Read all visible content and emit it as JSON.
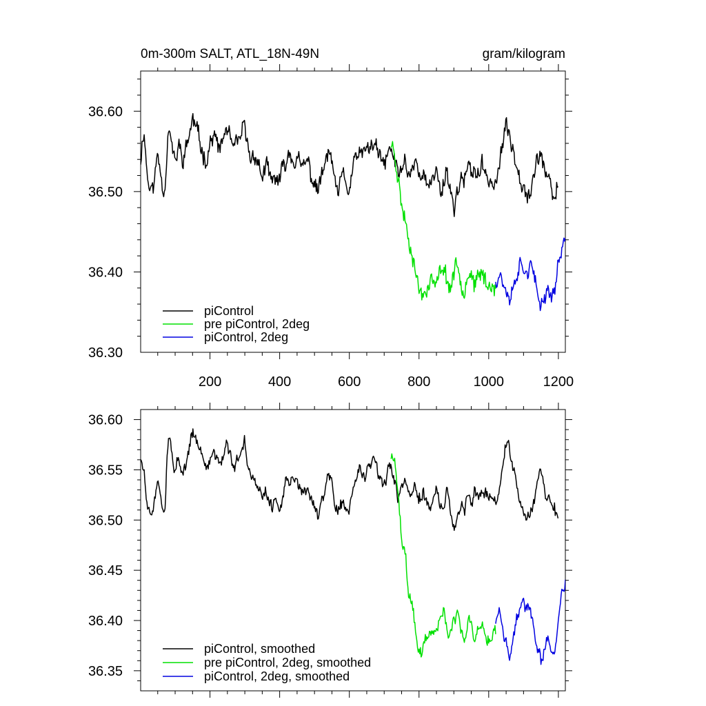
{
  "chart_data": [
    {
      "type": "line",
      "title_left": "0m-300m SALT, ATL_18N-49N",
      "title_right": "gram/kilogram",
      "xlim": [
        1,
        1220
      ],
      "ylim": [
        36.3,
        36.65
      ],
      "x_ticks": [
        200,
        400,
        600,
        800,
        1000,
        1200
      ],
      "x_tick_labels": [
        "200",
        "400",
        "600",
        "800",
        "1000",
        "1200"
      ],
      "y_ticks": [
        36.3,
        36.4,
        36.5,
        36.6
      ],
      "y_tick_labels": [
        "36.30",
        "36.40",
        "36.50",
        "36.60"
      ],
      "x_minor_step": 50,
      "y_minor_step": 0.02,
      "legend_position": "bottom-left",
      "series": [
        {
          "name": "piControl",
          "color": "#000000",
          "x_start": 1,
          "x_end": 1200,
          "x_keys": [
            1,
            10,
            20,
            30,
            40,
            50,
            60,
            70,
            80,
            90,
            100,
            110,
            120,
            130,
            140,
            150,
            160,
            170,
            180,
            190,
            200,
            210,
            220,
            230,
            240,
            250,
            260,
            270,
            280,
            290,
            300,
            310,
            320,
            330,
            340,
            350,
            360,
            370,
            380,
            390,
            400,
            410,
            420,
            430,
            440,
            450,
            460,
            470,
            480,
            490,
            500,
            510,
            520,
            530,
            540,
            550,
            560,
            570,
            580,
            590,
            600,
            610,
            620,
            630,
            640,
            650,
            660,
            670,
            680,
            690,
            700,
            710,
            720,
            730,
            740,
            750,
            760,
            770,
            780,
            790,
            800,
            810,
            820,
            830,
            840,
            850,
            860,
            870,
            880,
            890,
            900,
            910,
            920,
            930,
            940,
            950,
            960,
            970,
            980,
            990,
            1000,
            1010,
            1020,
            1030,
            1040,
            1050,
            1060,
            1070,
            1080,
            1090,
            1100,
            1110,
            1120,
            1130,
            1140,
            1150,
            1160,
            1170,
            1180,
            1190,
            1200
          ],
          "y_keys": [
            36.54,
            36.58,
            36.52,
            36.5,
            36.51,
            36.55,
            36.52,
            36.5,
            36.58,
            36.56,
            36.53,
            36.56,
            36.54,
            36.55,
            36.57,
            36.59,
            36.58,
            36.56,
            36.55,
            36.54,
            36.56,
            36.57,
            36.56,
            36.55,
            36.57,
            36.58,
            36.56,
            36.55,
            36.56,
            36.57,
            36.58,
            36.55,
            36.54,
            36.55,
            36.53,
            36.52,
            36.53,
            36.52,
            36.51,
            36.52,
            36.51,
            36.53,
            36.54,
            36.55,
            36.54,
            36.54,
            36.53,
            36.53,
            36.54,
            36.52,
            36.51,
            36.5,
            36.52,
            36.53,
            36.55,
            36.54,
            36.5,
            36.5,
            36.52,
            36.51,
            36.5,
            36.53,
            36.54,
            36.55,
            36.54,
            36.56,
            36.55,
            36.56,
            36.55,
            36.54,
            36.53,
            36.55,
            36.55,
            36.54,
            36.52,
            36.53,
            36.54,
            36.52,
            36.53,
            36.54,
            36.52,
            36.53,
            36.51,
            36.5,
            36.52,
            36.53,
            36.5,
            36.51,
            36.53,
            36.5,
            36.48,
            36.5,
            36.52,
            36.51,
            36.53,
            36.52,
            36.53,
            36.52,
            36.53,
            36.52,
            36.52,
            36.51,
            36.51,
            36.53,
            36.56,
            36.58,
            36.57,
            36.55,
            36.54,
            36.52,
            36.51,
            36.5,
            36.5,
            36.52,
            36.54,
            36.55,
            36.53,
            36.51,
            36.5,
            36.49,
            36.51
          ],
          "noise_amp": 0.018,
          "seed": 11
        },
        {
          "name": "pre piControl, 2deg",
          "color": "#00e000",
          "x_start": 720,
          "x_end": 1020,
          "x_keys": [
            720,
            730,
            740,
            750,
            760,
            770,
            780,
            790,
            800,
            810,
            820,
            830,
            840,
            850,
            860,
            870,
            880,
            890,
            900,
            910,
            920,
            930,
            940,
            950,
            960,
            970,
            980,
            990,
            1000,
            1010,
            1020
          ],
          "y_keys": [
            36.56,
            36.55,
            36.52,
            36.48,
            36.47,
            36.44,
            36.43,
            36.4,
            36.38,
            36.37,
            36.38,
            36.39,
            36.39,
            36.38,
            36.4,
            36.41,
            36.39,
            36.38,
            36.4,
            36.41,
            36.39,
            36.38,
            36.4,
            36.4,
            36.38,
            36.39,
            36.4,
            36.39,
            36.38,
            36.39,
            36.38
          ],
          "noise_amp": 0.018,
          "seed": 23
        },
        {
          "name": "piControl, 2deg",
          "color": "#0000e0",
          "x_start": 1020,
          "x_end": 1220,
          "x_keys": [
            1020,
            1030,
            1040,
            1050,
            1060,
            1070,
            1080,
            1090,
            1100,
            1110,
            1120,
            1130,
            1140,
            1150,
            1160,
            1170,
            1180,
            1190,
            1200,
            1210,
            1220
          ],
          "y_keys": [
            36.39,
            36.4,
            36.39,
            36.38,
            36.37,
            36.38,
            36.4,
            36.41,
            36.41,
            36.4,
            36.41,
            36.39,
            36.37,
            36.36,
            36.37,
            36.38,
            36.37,
            36.38,
            36.41,
            36.43,
            36.44
          ],
          "noise_amp": 0.016,
          "seed": 37
        }
      ]
    },
    {
      "type": "line",
      "title_left": "",
      "title_right": "",
      "xlim": [
        1,
        1220
      ],
      "ylim": [
        36.33,
        36.61
      ],
      "x_ticks": [
        200,
        400,
        600,
        800,
        1000,
        1200
      ],
      "x_tick_labels": [],
      "y_ticks": [
        36.35,
        36.4,
        36.45,
        36.5,
        36.55,
        36.6
      ],
      "y_tick_labels": [
        "36.35",
        "36.40",
        "36.45",
        "36.50",
        "36.55",
        "36.60"
      ],
      "x_minor_step": 50,
      "y_minor_step": 0.01,
      "legend_position": "bottom-left",
      "series": [
        {
          "name": "piControl, smoothed",
          "color": "#000000",
          "x_start": 1,
          "x_end": 1200,
          "x_keys": [
            1,
            10,
            20,
            30,
            40,
            50,
            60,
            70,
            80,
            90,
            100,
            110,
            120,
            130,
            140,
            150,
            160,
            170,
            180,
            190,
            200,
            210,
            220,
            230,
            240,
            250,
            260,
            270,
            280,
            290,
            300,
            310,
            320,
            330,
            340,
            350,
            360,
            370,
            380,
            390,
            400,
            410,
            420,
            430,
            440,
            450,
            460,
            470,
            480,
            490,
            500,
            510,
            520,
            530,
            540,
            550,
            560,
            570,
            580,
            590,
            600,
            610,
            620,
            630,
            640,
            650,
            660,
            670,
            680,
            690,
            700,
            710,
            720,
            730,
            740,
            750,
            760,
            770,
            780,
            790,
            800,
            810,
            820,
            830,
            840,
            850,
            860,
            870,
            880,
            890,
            900,
            910,
            920,
            930,
            940,
            950,
            960,
            970,
            980,
            990,
            1000,
            1010,
            1020,
            1030,
            1040,
            1050,
            1060,
            1070,
            1080,
            1090,
            1100,
            1110,
            1120,
            1130,
            1140,
            1150,
            1160,
            1170,
            1180,
            1190,
            1200
          ],
          "y_keys": [
            36.56,
            36.55,
            36.51,
            36.5,
            36.52,
            36.54,
            36.52,
            36.51,
            36.58,
            36.57,
            36.55,
            36.56,
            36.54,
            36.55,
            36.57,
            36.59,
            36.58,
            36.57,
            36.56,
            36.55,
            36.56,
            36.57,
            36.56,
            36.56,
            36.57,
            36.58,
            36.56,
            36.55,
            36.56,
            36.57,
            36.58,
            36.55,
            36.54,
            36.54,
            36.53,
            36.52,
            36.53,
            36.52,
            36.51,
            36.52,
            36.51,
            36.53,
            36.54,
            36.54,
            36.54,
            36.54,
            36.53,
            36.53,
            36.53,
            36.52,
            36.51,
            36.5,
            36.52,
            36.53,
            36.55,
            36.54,
            36.51,
            36.51,
            36.52,
            36.51,
            36.51,
            36.53,
            36.54,
            36.55,
            36.54,
            36.55,
            36.55,
            36.56,
            36.55,
            36.54,
            36.53,
            36.55,
            36.55,
            36.54,
            36.52,
            36.53,
            36.54,
            36.52,
            36.53,
            36.53,
            36.52,
            36.53,
            36.52,
            36.51,
            36.52,
            36.53,
            36.51,
            36.51,
            36.53,
            36.51,
            36.49,
            36.5,
            36.52,
            36.51,
            36.53,
            36.52,
            36.53,
            36.52,
            36.53,
            36.53,
            36.52,
            36.52,
            36.52,
            36.53,
            36.55,
            36.58,
            36.57,
            36.55,
            36.54,
            36.52,
            36.51,
            36.5,
            36.51,
            36.52,
            36.54,
            36.55,
            36.53,
            36.52,
            36.52,
            36.51,
            36.5
          ],
          "noise_amp": 0.01,
          "seed": 51
        },
        {
          "name": "pre piControl, 2deg, smoothed",
          "color": "#00e000",
          "x_start": 720,
          "x_end": 1020,
          "x_keys": [
            720,
            730,
            740,
            750,
            760,
            770,
            780,
            790,
            800,
            810,
            820,
            830,
            840,
            850,
            860,
            870,
            880,
            890,
            900,
            910,
            920,
            930,
            940,
            950,
            960,
            970,
            980,
            990,
            1000,
            1010,
            1020
          ],
          "y_keys": [
            36.56,
            36.56,
            36.53,
            36.48,
            36.47,
            36.43,
            36.42,
            36.39,
            36.37,
            36.37,
            36.38,
            36.39,
            36.39,
            36.39,
            36.4,
            36.41,
            36.39,
            36.39,
            36.4,
            36.41,
            36.39,
            36.38,
            36.4,
            36.4,
            36.38,
            36.39,
            36.4,
            36.39,
            36.38,
            36.39,
            36.39
          ],
          "noise_amp": 0.01,
          "seed": 63
        },
        {
          "name": "piControl, 2deg, smoothed",
          "color": "#0000e0",
          "x_start": 1020,
          "x_end": 1220,
          "x_keys": [
            1020,
            1030,
            1040,
            1050,
            1060,
            1070,
            1080,
            1090,
            1100,
            1110,
            1120,
            1130,
            1140,
            1150,
            1160,
            1170,
            1180,
            1190,
            1200,
            1210,
            1220
          ],
          "y_keys": [
            36.4,
            36.41,
            36.39,
            36.38,
            36.36,
            36.38,
            36.4,
            36.41,
            36.42,
            36.41,
            36.41,
            36.39,
            36.37,
            36.36,
            36.37,
            36.38,
            36.37,
            36.37,
            36.4,
            36.43,
            36.44
          ],
          "noise_amp": 0.009,
          "seed": 77
        }
      ]
    }
  ]
}
